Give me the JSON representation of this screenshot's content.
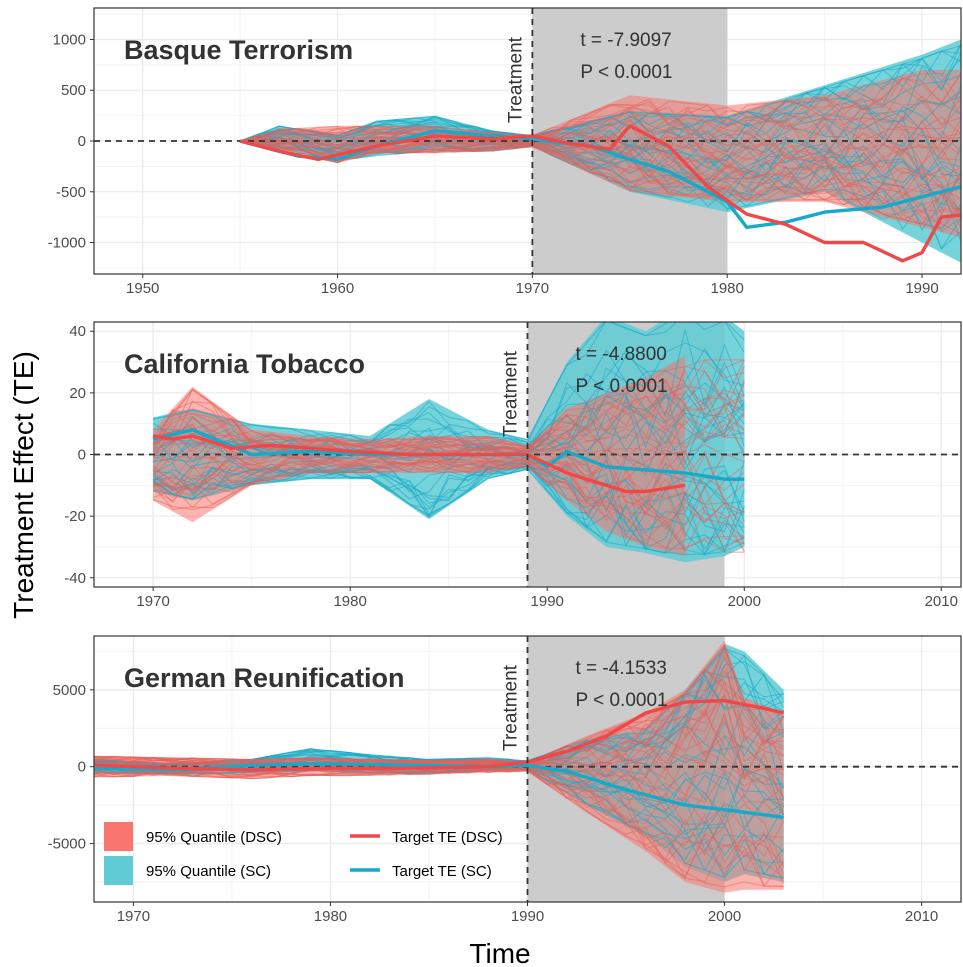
{
  "figure": {
    "ylabel": "Treatment Effect (TE)",
    "xlabel": "Time"
  },
  "colors": {
    "dsc": "#F8766D",
    "dsc_line": "#F04848",
    "sc": "#00BFC4",
    "sc_fill": "#5FCBD4",
    "sc_line": "#17A9C8",
    "shade": "#CCCCCC",
    "grid": "#EBEBEB"
  },
  "legend": {
    "items": [
      {
        "label": "95% Quantile (DSC)",
        "kind": "fill",
        "color": "#F8766D"
      },
      {
        "label": "Target TE (DSC)",
        "kind": "line",
        "color": "#F04848"
      },
      {
        "label": "95% Quantile (SC)",
        "kind": "fill",
        "color": "#5FCBD4"
      },
      {
        "label": "Target TE (SC)",
        "kind": "line",
        "color": "#17A9C8"
      }
    ]
  },
  "treatment_label": "Treatment",
  "chart_data": [
    {
      "type": "line",
      "title": "Basque Terrorism",
      "stat_t": "t = -7.9097",
      "stat_p": "P < 0.0001",
      "xlim": [
        1947.5,
        1992
      ],
      "ylim": [
        -1310,
        1310
      ],
      "xticks": [
        1950,
        1960,
        1970,
        1980,
        1990
      ],
      "yticks": [
        1000,
        500,
        0,
        -500,
        -1000
      ],
      "treatment_x": 1970,
      "shade": [
        1970,
        1980
      ],
      "start": 1955,
      "end": 1992,
      "sc_band": {
        "x": [
          1955,
          1957,
          1960,
          1962,
          1965,
          1968,
          1970,
          1975,
          1980,
          1985,
          1990,
          1992
        ],
        "upper": [
          0,
          150,
          60,
          200,
          250,
          100,
          60,
          300,
          250,
          550,
          850,
          1000
        ],
        "lower": [
          0,
          -80,
          -200,
          -150,
          -100,
          -100,
          -60,
          -500,
          -700,
          -500,
          -1000,
          -1200
        ]
      },
      "dsc_band": {
        "x": [
          1955,
          1957,
          1960,
          1962,
          1965,
          1968,
          1970,
          1975,
          1980,
          1985,
          1990,
          1992
        ],
        "upper": [
          0,
          120,
          150,
          150,
          150,
          80,
          60,
          450,
          350,
          450,
          700,
          700
        ],
        "lower": [
          0,
          -100,
          -220,
          -120,
          -120,
          -100,
          -60,
          -500,
          -600,
          -600,
          -850,
          -950
        ]
      },
      "sc_target": {
        "x": [
          1955,
          1958,
          1960,
          1962,
          1965,
          1968,
          1970,
          1973,
          1975,
          1977,
          1980,
          1981,
          1983,
          1985,
          1988,
          1990,
          1992
        ],
        "y": [
          0,
          -150,
          -180,
          -50,
          100,
          50,
          20,
          -50,
          -180,
          -300,
          -600,
          -850,
          -800,
          -700,
          -650,
          -550,
          -450
        ]
      },
      "dsc_target": {
        "x": [
          1955,
          1957,
          1959,
          1962,
          1965,
          1968,
          1970,
          1972,
          1974,
          1975,
          1977,
          1979,
          1981,
          1983,
          1985,
          1987,
          1989,
          1990,
          1991,
          1992
        ],
        "y": [
          0,
          -100,
          -180,
          -50,
          50,
          20,
          50,
          -30,
          -80,
          150,
          -50,
          -450,
          -720,
          -820,
          -1000,
          -1000,
          -1180,
          -1100,
          -750,
          -730
        ]
      }
    },
    {
      "type": "line",
      "title": "California Tobacco",
      "stat_t": "t = -4.8800",
      "stat_p": "P < 0.0001",
      "xlim": [
        1967,
        2011
      ],
      "ylim": [
        -43,
        43
      ],
      "xticks": [
        1970,
        1980,
        1990,
        2000,
        2010
      ],
      "yticks": [
        40,
        20,
        0,
        -20,
        -40
      ],
      "treatment_x": 1989,
      "shade": [
        1989,
        1999
      ],
      "start": 1970,
      "end": 2000,
      "sc_band": {
        "x": [
          1970,
          1972,
          1975,
          1978,
          1981,
          1984,
          1987,
          1989,
          1991,
          1993,
          1995,
          1997,
          1999,
          2000
        ],
        "upper": [
          12,
          15,
          10,
          8,
          6,
          18,
          8,
          5,
          30,
          45,
          40,
          48,
          45,
          40
        ],
        "lower": [
          -12,
          -15,
          -10,
          -8,
          -8,
          -21,
          -8,
          -5,
          -20,
          -30,
          -32,
          -35,
          -33,
          -30
        ]
      },
      "dsc_band": {
        "x": [
          1970,
          1972,
          1975,
          1978,
          1981,
          1984,
          1987,
          1989,
          1991,
          1993,
          1995,
          1997
        ],
        "upper": [
          8,
          22,
          8,
          6,
          5,
          6,
          6,
          3,
          15,
          20,
          25,
          32
        ],
        "lower": [
          -15,
          -22,
          -10,
          -6,
          -6,
          -6,
          -6,
          -4,
          -15,
          -25,
          -30,
          -33
        ]
      },
      "sc_target": {
        "x": [
          1970,
          1972,
          1975,
          1978,
          1981,
          1984,
          1987,
          1989,
          1990,
          1991,
          1993,
          1995,
          1997,
          1999,
          2000
        ],
        "y": [
          5,
          8,
          0,
          1,
          0,
          0,
          0,
          0,
          -4,
          1,
          -4,
          -5,
          -6,
          -8,
          -8
        ]
      },
      "dsc_target": {
        "x": [
          1970,
          1971,
          1972,
          1974,
          1976,
          1978,
          1980,
          1983,
          1986,
          1989,
          1991,
          1993,
          1994,
          1995,
          1996,
          1997
        ],
        "y": [
          6,
          5,
          6,
          2,
          3,
          2,
          1,
          0,
          0,
          0,
          -6,
          -10,
          -12,
          -12,
          -11,
          -10
        ]
      }
    },
    {
      "type": "line",
      "title": "German Reunification",
      "stat_t": "t = -4.1533",
      "stat_p": "P < 0.0001",
      "xlim": [
        1968,
        2012
      ],
      "ylim": [
        -8800,
        8500
      ],
      "xticks": [
        1970,
        1980,
        1990,
        2000,
        2010
      ],
      "yticks": [
        5000,
        0,
        -5000
      ],
      "treatment_x": 1990,
      "shade": [
        1990,
        2000
      ],
      "start": 1968,
      "end": 2003,
      "sc_band": {
        "x": [
          1968,
          1972,
          1976,
          1979,
          1982,
          1985,
          1988,
          1990,
          1993,
          1996,
          1998,
          2000,
          2001,
          2003
        ],
        "upper": [
          500,
          200,
          500,
          1200,
          800,
          500,
          600,
          400,
          1800,
          2500,
          5000,
          8000,
          7500,
          5000
        ],
        "lower": [
          -400,
          -500,
          -400,
          -300,
          -400,
          -500,
          -300,
          -200,
          -2500,
          -4500,
          -6500,
          -7500,
          -7000,
          -7500
        ]
      },
      "dsc_band": {
        "x": [
          1968,
          1972,
          1976,
          1979,
          1982,
          1985,
          1988,
          1990,
          1993,
          1996,
          1998,
          2000,
          2001,
          2003
        ],
        "upper": [
          700,
          600,
          500,
          600,
          500,
          400,
          500,
          300,
          2000,
          3500,
          5000,
          8200,
          4500,
          3500
        ],
        "lower": [
          -700,
          -600,
          -800,
          -600,
          -600,
          -500,
          -400,
          -300,
          -3000,
          -5500,
          -7500,
          -8200,
          -8000,
          -8000
        ]
      },
      "sc_target": {
        "x": [
          1968,
          1972,
          1976,
          1980,
          1984,
          1988,
          1990,
          1992,
          1995,
          1998,
          2000,
          2003
        ],
        "y": [
          -100,
          -200,
          100,
          200,
          100,
          0,
          100,
          -300,
          -1500,
          -2500,
          -2800,
          -3300
        ]
      },
      "dsc_target": {
        "x": [
          1968,
          1972,
          1976,
          1980,
          1984,
          1988,
          1990,
          1992,
          1994,
          1996,
          1998,
          2000,
          2002,
          2003
        ],
        "y": [
          100,
          -100,
          -200,
          -100,
          -100,
          0,
          300,
          1000,
          2000,
          3500,
          4200,
          4300,
          3800,
          3500
        ]
      }
    }
  ]
}
